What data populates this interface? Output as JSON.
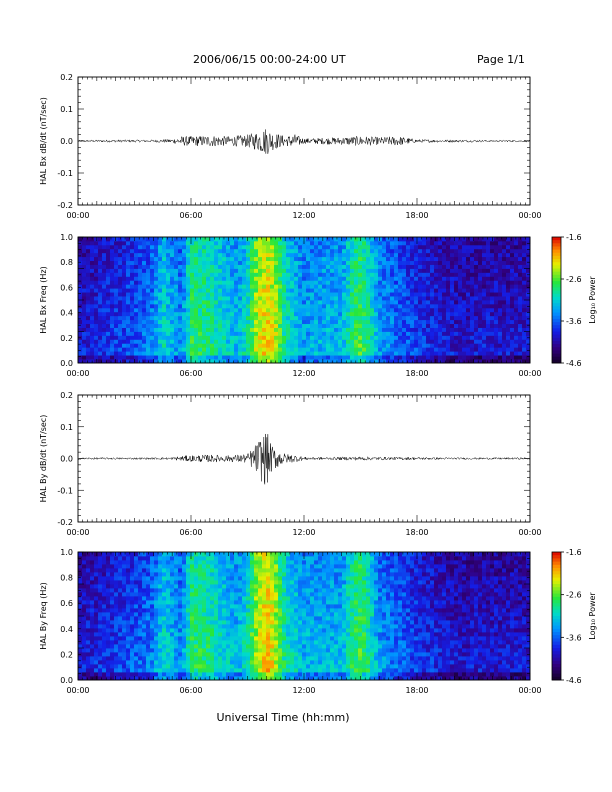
{
  "header": {
    "title": "2006/06/15  00:00-24:00 UT",
    "page": "Page 1/1"
  },
  "xaxis": {
    "label": "Universal Time (hh:mm)",
    "ticks": [
      "00:00",
      "06:00",
      "12:00",
      "18:00",
      "00:00"
    ],
    "tick_hours": [
      0,
      6,
      12,
      18,
      24
    ],
    "range_hours": [
      0,
      24
    ]
  },
  "chart_data": [
    {
      "type": "line",
      "ylabel": "HAL Bx dB/dt (nT/sec)",
      "xlim": [
        0,
        24
      ],
      "ylim": [
        -0.2,
        0.2
      ],
      "yticks": [
        "0.2",
        "0.1",
        "0.0",
        "-0.1",
        "-0.2"
      ],
      "ytick_values": [
        0.2,
        0.1,
        0.0,
        -0.1,
        -0.2
      ],
      "envelope": {
        "hours": [
          0,
          2,
          4,
          5,
          5.5,
          6,
          7,
          8,
          9,
          9.5,
          10,
          10.3,
          11,
          11.5,
          12,
          13,
          14,
          15,
          16,
          17,
          18,
          20,
          22,
          24
        ],
        "amplitude": [
          0.003,
          0.004,
          0.004,
          0.006,
          0.015,
          0.015,
          0.018,
          0.015,
          0.02,
          0.03,
          0.045,
          0.03,
          0.015,
          0.022,
          0.008,
          0.01,
          0.012,
          0.016,
          0.012,
          0.015,
          0.005,
          0.004,
          0.003,
          0.003
        ]
      }
    },
    {
      "type": "heatmap",
      "ylabel": "HAL Bx Freq (Hz)",
      "xlim": [
        0,
        24
      ],
      "ylim": [
        0,
        1.0
      ],
      "yticks": [
        "1.0",
        "0.8",
        "0.6",
        "0.4",
        "0.2",
        "0.0"
      ],
      "ytick_values": [
        1.0,
        0.8,
        0.6,
        0.4,
        0.2,
        0.0
      ],
      "colorbar": {
        "label": "Log₁₀ Power",
        "ticks": [
          "-1.6",
          "-2.6",
          "-3.6",
          "-4.6"
        ],
        "tick_values": [
          -1.6,
          -2.6,
          -3.6,
          -4.6
        ],
        "range": [
          -4.6,
          -1.6
        ]
      },
      "power_profile": {
        "hours": [
          0,
          1,
          2,
          3,
          4,
          4.5,
          5,
          5.5,
          6,
          7,
          8,
          8.5,
          9,
          9.5,
          10,
          10.5,
          11,
          12,
          13,
          14,
          14.5,
          15,
          15.5,
          16,
          17,
          18,
          19,
          20,
          22,
          24
        ],
        "log_power": [
          -3.9,
          -3.8,
          -3.7,
          -3.6,
          -3.4,
          -3.0,
          -3.2,
          -3.4,
          -2.7,
          -2.8,
          -3.1,
          -3.2,
          -2.9,
          -2.3,
          -2.1,
          -2.3,
          -2.9,
          -3.3,
          -3.2,
          -3.2,
          -2.8,
          -2.6,
          -2.9,
          -3.3,
          -3.5,
          -3.7,
          -3.8,
          -3.9,
          -3.9,
          -3.9
        ]
      }
    },
    {
      "type": "line",
      "ylabel": "HAL By dB/dt (nT/sec)",
      "xlim": [
        0,
        24
      ],
      "ylim": [
        -0.2,
        0.2
      ],
      "yticks": [
        "0.2",
        "0.1",
        "0.0",
        "-0.1",
        "-0.2"
      ],
      "ytick_values": [
        0.2,
        0.1,
        0.0,
        -0.1,
        -0.2
      ],
      "envelope": {
        "hours": [
          0,
          2,
          4,
          5,
          5.5,
          6,
          7,
          8,
          9,
          9.5,
          9.8,
          10,
          10.3,
          11,
          11.5,
          12,
          13,
          14,
          15,
          16,
          18,
          20,
          22,
          24
        ],
        "amplitude": [
          0.003,
          0.003,
          0.003,
          0.004,
          0.008,
          0.01,
          0.012,
          0.01,
          0.015,
          0.05,
          0.08,
          0.09,
          0.04,
          0.015,
          0.012,
          0.005,
          0.004,
          0.005,
          0.006,
          0.005,
          0.004,
          0.003,
          0.003,
          0.003
        ]
      }
    },
    {
      "type": "heatmap",
      "ylabel": "HAL By Freq (Hz)",
      "xlim": [
        0,
        24
      ],
      "ylim": [
        0,
        1.0
      ],
      "yticks": [
        "1.0",
        "0.8",
        "0.6",
        "0.4",
        "0.2",
        "0.0"
      ],
      "ytick_values": [
        1.0,
        0.8,
        0.6,
        0.4,
        0.2,
        0.0
      ],
      "colorbar": {
        "label": "Log₁₀ Power",
        "ticks": [
          "-1.6",
          "-2.6",
          "-3.6",
          "-4.6"
        ],
        "tick_values": [
          -1.6,
          -2.6,
          -3.6,
          -4.6
        ],
        "range": [
          -4.6,
          -1.6
        ]
      },
      "power_profile": {
        "hours": [
          0,
          1,
          2,
          3,
          4,
          4.5,
          5,
          5.5,
          6,
          7,
          8,
          8.5,
          9,
          9.5,
          10,
          10.5,
          11,
          12,
          13,
          14,
          14.5,
          15,
          15.5,
          16,
          17,
          18,
          19,
          20,
          22,
          24
        ],
        "log_power": [
          -3.9,
          -3.8,
          -3.7,
          -3.6,
          -3.4,
          -3.0,
          -3.2,
          -3.4,
          -2.7,
          -2.8,
          -3.1,
          -3.2,
          -2.9,
          -2.3,
          -2.0,
          -2.3,
          -2.9,
          -3.2,
          -3.2,
          -3.2,
          -2.8,
          -2.6,
          -2.9,
          -3.3,
          -3.5,
          -3.7,
          -3.8,
          -3.9,
          -3.9,
          -3.9
        ]
      }
    }
  ]
}
